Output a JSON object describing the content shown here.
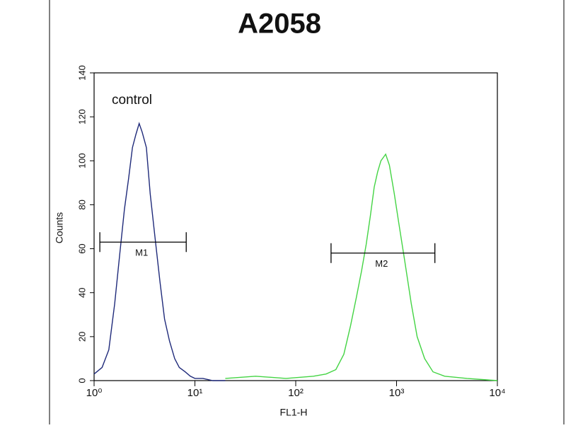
{
  "chart_data": {
    "type": "histogram-line",
    "title": "A2058",
    "xlabel": "FL1-H",
    "ylabel": "Counts",
    "xscale": "log",
    "xlim": [
      1,
      10000
    ],
    "ylim": [
      0,
      140
    ],
    "xticks": [
      {
        "value": 1,
        "label": "10⁰"
      },
      {
        "value": 10,
        "label": "10¹"
      },
      {
        "value": 100,
        "label": "10²"
      },
      {
        "value": 1000,
        "label": "10³"
      },
      {
        "value": 10000,
        "label": "10⁴"
      }
    ],
    "yticks": [
      0,
      20,
      40,
      60,
      80,
      100,
      120,
      140
    ],
    "series": [
      {
        "name": "control",
        "color": "#1f2a7a",
        "x": [
          1.0,
          1.2,
          1.4,
          1.6,
          1.8,
          2.0,
          2.2,
          2.4,
          2.6,
          2.8,
          3.0,
          3.3,
          3.6,
          4.0,
          4.5,
          5,
          5.6,
          6.3,
          7,
          8,
          9,
          10,
          12,
          15,
          20
        ],
        "values": [
          3,
          6,
          14,
          35,
          58,
          78,
          92,
          106,
          112,
          117,
          113,
          106,
          85,
          66,
          45,
          28,
          18,
          10,
          6,
          4,
          2,
          1,
          1,
          0,
          0
        ]
      },
      {
        "color": "#44d444",
        "x": [
          20,
          40,
          80,
          150,
          200,
          250,
          300,
          350,
          400,
          450,
          500,
          550,
          600,
          650,
          700,
          780,
          850,
          950,
          1050,
          1200,
          1400,
          1600,
          1900,
          2300,
          3000,
          5000,
          10000
        ],
        "values": [
          1,
          2,
          1,
          2,
          3,
          5,
          12,
          25,
          38,
          50,
          62,
          75,
          88,
          95,
          100,
          103,
          98,
          85,
          72,
          55,
          35,
          20,
          10,
          4,
          2,
          1,
          0
        ]
      }
    ],
    "gates": [
      {
        "label": "M1",
        "range": [
          1.14,
          8.2
        ],
        "y": 63
      },
      {
        "label": "M2",
        "range": [
          224,
          2400
        ],
        "y": 58
      }
    ]
  }
}
